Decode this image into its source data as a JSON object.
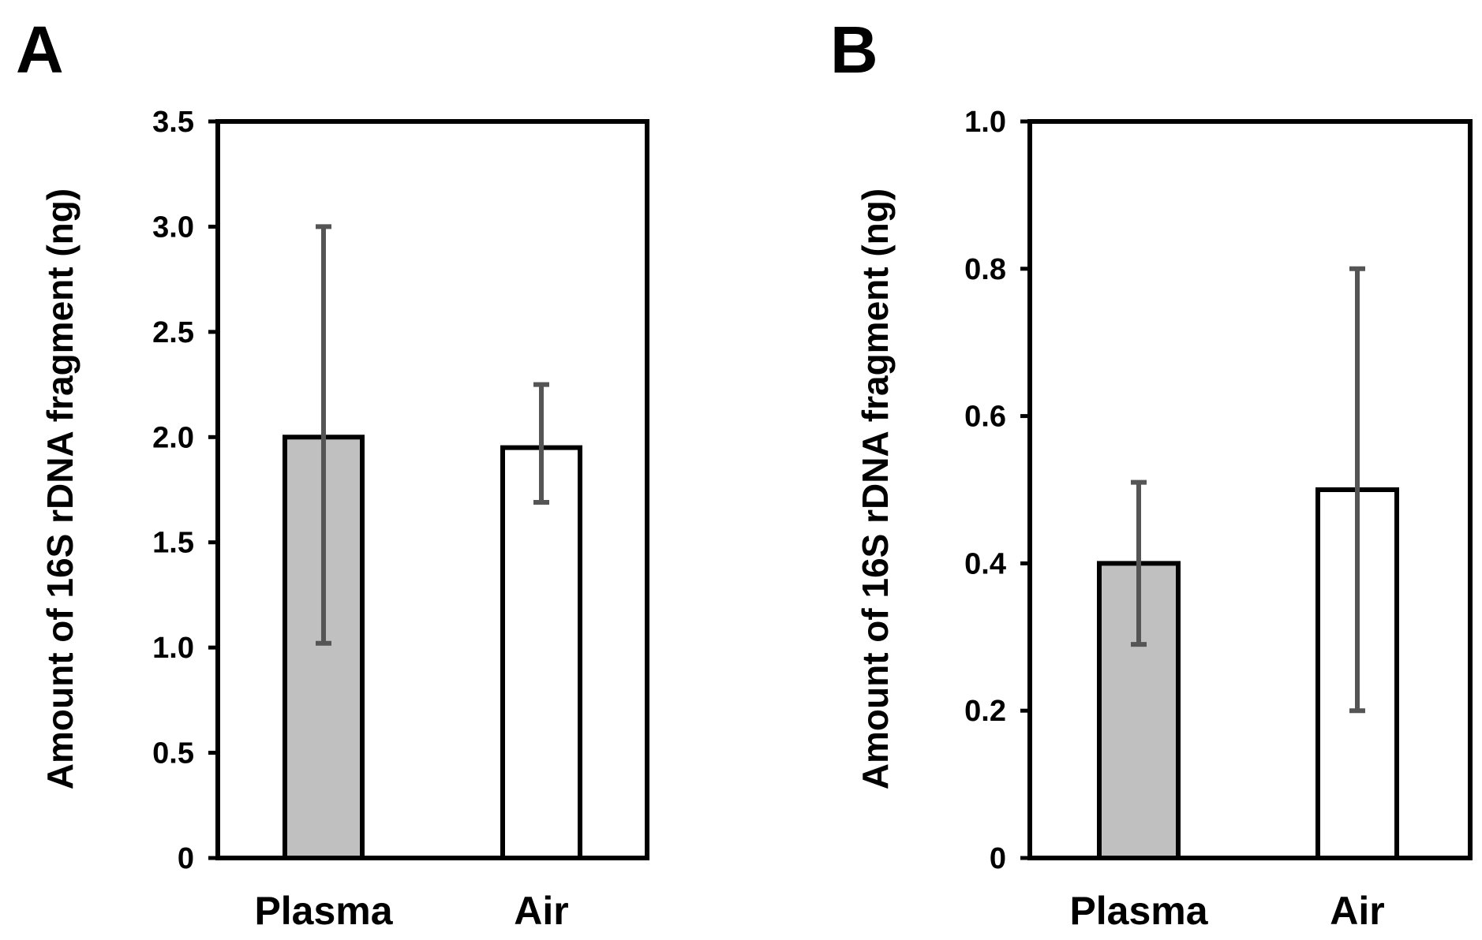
{
  "chart_data": [
    {
      "panel": "A",
      "type": "bar",
      "categories": [
        "Plasma",
        "Air"
      ],
      "values": [
        2.0,
        1.95
      ],
      "error_low": [
        1.02,
        1.69
      ],
      "error_high": [
        3.0,
        2.25
      ],
      "ylabel": "Amount of 16S rDNA fragment (ng)",
      "ylim": [
        0,
        3.5
      ],
      "yticks": [
        0,
        0.5,
        1.0,
        1.5,
        2.0,
        2.5,
        3.0,
        3.5
      ],
      "ytick_labels": [
        "0",
        "0.5",
        "1.0",
        "1.5",
        "2.0",
        "2.5",
        "3.0",
        "3.5"
      ],
      "bar_colors": [
        "#c0c0c0",
        "#ffffff"
      ],
      "error_color": "#555555"
    },
    {
      "panel": "B",
      "type": "bar",
      "categories": [
        "Plasma",
        "Air"
      ],
      "values": [
        0.4,
        0.5
      ],
      "error_low": [
        0.29,
        0.2
      ],
      "error_high": [
        0.51,
        0.8
      ],
      "ylabel": "Amount of 16S rDNA fragment (ng)",
      "ylim": [
        0,
        1.0
      ],
      "yticks": [
        0,
        0.2,
        0.4,
        0.6,
        0.8,
        1.0
      ],
      "ytick_labels": [
        "0",
        "0.2",
        "0.4",
        "0.6",
        "0.8",
        "1.0"
      ],
      "bar_colors": [
        "#c0c0c0",
        "#ffffff"
      ],
      "error_color": "#555555"
    }
  ]
}
